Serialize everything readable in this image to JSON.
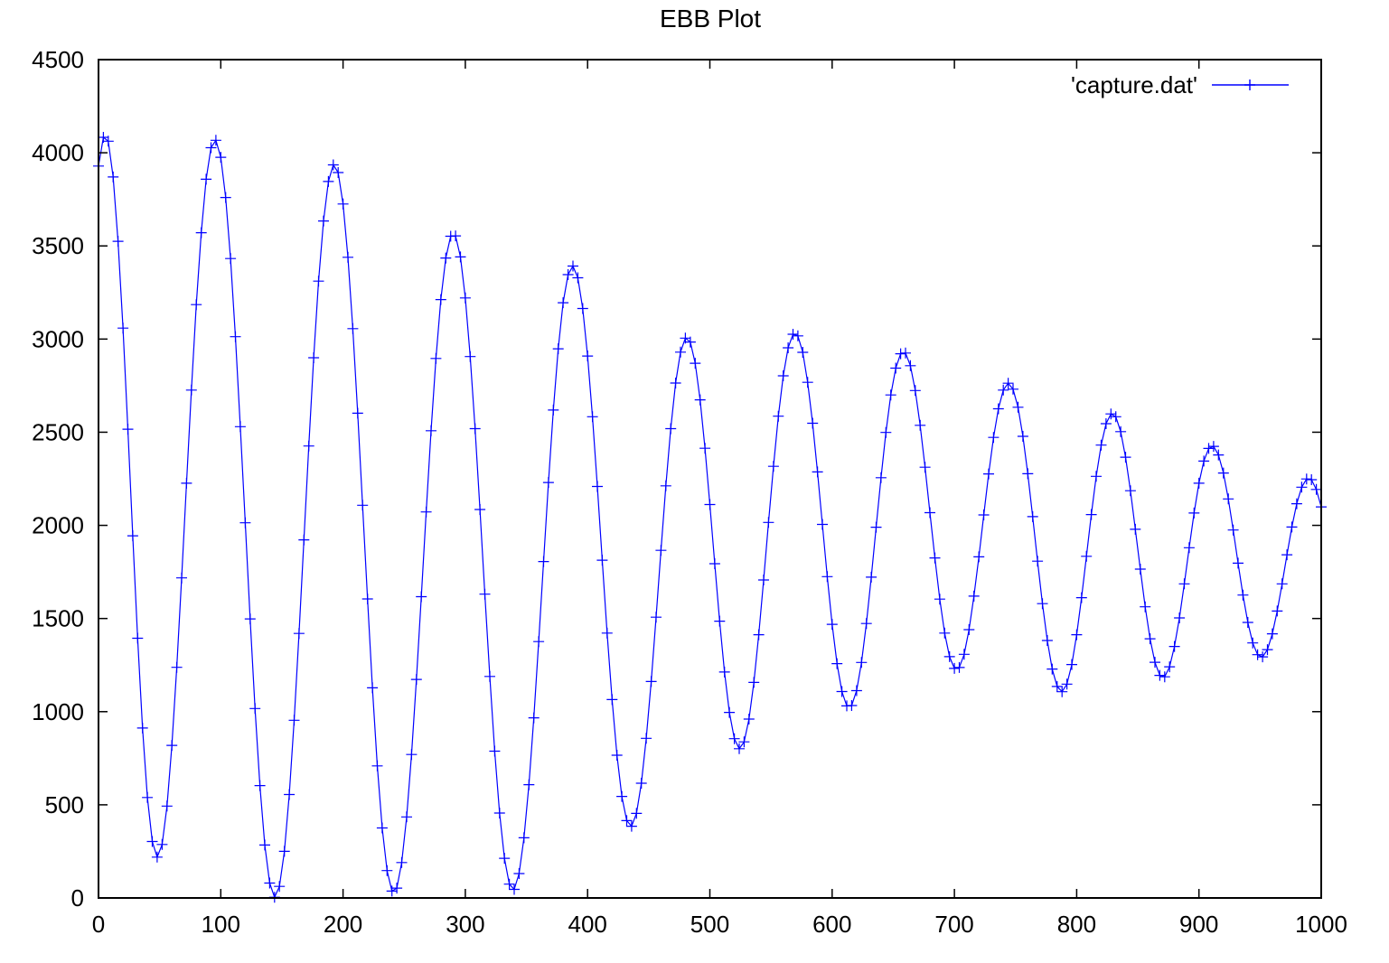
{
  "chart_data": {
    "type": "line",
    "title": "EBB Plot",
    "xlabel": "",
    "ylabel": "",
    "xlim": [
      0,
      1000
    ],
    "ylim": [
      0,
      4500
    ],
    "xticks": [
      "0",
      "100",
      "200",
      "300",
      "400",
      "500",
      "600",
      "700",
      "800",
      "900",
      "1000"
    ],
    "yticks": [
      "0",
      "500",
      "1000",
      "1500",
      "2000",
      "2500",
      "3000",
      "3500",
      "4000",
      "4500"
    ],
    "grid": false,
    "legend_position": "top-right",
    "marker": "plus",
    "line_color": "#0000ff",
    "series": [
      {
        "name": "'capture.dat'",
        "x": [
          0,
          4,
          8,
          12,
          16,
          20,
          24,
          28,
          32,
          36,
          40,
          44,
          48,
          52,
          56,
          60,
          64,
          68,
          72,
          76,
          80,
          84,
          88,
          92,
          96,
          100,
          104,
          108,
          112,
          116,
          120,
          124,
          128,
          132,
          136,
          140,
          144,
          148,
          152,
          156,
          160,
          164,
          168,
          172,
          176,
          180,
          184,
          188,
          192,
          196,
          200,
          204,
          208,
          212,
          216,
          220,
          224,
          228,
          232,
          236,
          240,
          244,
          248,
          252,
          256,
          260,
          264,
          268,
          272,
          276,
          280,
          284,
          288,
          292,
          296,
          300,
          304,
          308,
          312,
          316,
          320,
          324,
          328,
          332,
          336,
          340,
          344,
          348,
          352,
          356,
          360,
          364,
          368,
          372,
          376,
          380,
          384,
          388,
          392,
          396,
          400,
          404,
          408,
          412,
          416,
          420,
          424,
          428,
          432,
          436,
          440,
          444,
          448,
          452,
          456,
          460,
          464,
          468,
          472,
          476,
          480,
          484,
          488,
          492,
          496,
          500,
          504,
          508,
          512,
          516,
          520,
          524,
          528,
          532,
          536,
          540,
          544,
          548,
          552,
          556,
          560,
          564,
          568,
          572,
          576,
          580,
          584,
          588,
          592,
          596,
          600,
          604,
          608,
          612,
          616,
          620,
          624,
          628,
          632,
          636,
          640,
          644,
          648,
          652,
          656,
          660,
          664,
          668,
          672,
          676,
          680,
          684,
          688,
          692,
          696,
          700,
          704,
          708,
          712,
          716,
          720,
          724,
          728,
          732,
          736,
          740,
          744,
          748,
          752,
          756,
          760,
          764,
          768,
          772,
          776,
          780,
          784,
          788,
          792,
          796,
          800,
          804,
          808,
          812,
          816,
          820,
          824,
          828,
          832,
          836,
          840,
          844,
          848,
          852,
          856,
          860,
          864,
          868,
          872,
          876,
          880,
          884,
          888,
          892,
          896,
          900,
          904,
          908,
          912,
          916,
          920,
          924,
          928,
          932,
          936,
          940,
          944,
          948,
          952,
          956,
          960,
          964,
          968,
          972,
          976,
          980,
          984,
          988,
          992,
          996,
          1000
        ],
        "y": [
          3929,
          4083,
          4062,
          3870,
          3525,
          3059,
          2516,
          1944,
          1394,
          912,
          539,
          303,
          219,
          287,
          493,
          819,
          1238,
          1718,
          2226,
          2726,
          3185,
          3571,
          3858,
          4027,
          4067,
          3976,
          3760,
          3432,
          3013,
          2530,
          2014,
          1498,
          1017,
          603,
          284,
          80,
          4,
          62,
          250,
          555,
          954,
          1420,
          1922,
          2426,
          2900,
          3311,
          3634,
          3846,
          3935,
          3894,
          3725,
          3439,
          3056,
          2602,
          2108,
          1605,
          1128,
          709,
          376,
          147,
          37,
          53,
          190,
          435,
          770,
          1173,
          1617,
          2072,
          2508,
          2896,
          3212,
          3435,
          3552,
          3554,
          3441,
          3221,
          2906,
          2519,
          2085,
          1631,
          1189,
          788,
          456,
          213,
          74,
          46,
          131,
          323,
          608,
          967,
          1376,
          1806,
          2230,
          2619,
          2948,
          3195,
          3346,
          3392,
          3329,
          3164,
          2909,
          2583,
          2209,
          1813,
          1422,
          1065,
          766,
          545,
          415,
          385,
          454,
          616,
          857,
          1162,
          1507,
          1866,
          2212,
          2519,
          2764,
          2930,
          3005,
          2984,
          2870,
          2674,
          2414,
          2112,
          1794,
          1486,
          1213,
          996,
          855,
          801,
          838,
          960,
          1157,
          1413,
          1707,
          2016,
          2317,
          2586,
          2803,
          2953,
          3026,
          3017,
          2929,
          2768,
          2548,
          2287,
          2005,
          1725,
          1469,
          1258,
          1108,
          1031,
          1033,
          1113,
          1264,
          1473,
          1722,
          1990,
          2256,
          2499,
          2700,
          2844,
          2921,
          2925,
          2857,
          2724,
          2537,
          2312,
          2068,
          1825,
          1604,
          1422,
          1295,
          1232,
          1237,
          1308,
          1440,
          1620,
          1831,
          2056,
          2276,
          2472,
          2626,
          2726,
          2763,
          2731,
          2634,
          2478,
          2277,
          2047,
          1808,
          1580,
          1382,
          1229,
          1135,
          1107,
          1148,
          1253,
          1413,
          1612,
          1834,
          2058,
          2263,
          2431,
          2546,
          2598,
          2583,
          2503,
          2366,
          2186,
          1979,
          1765,
          1563,
          1391,
          1265,
          1195,
          1187,
          1241,
          1350,
          1503,
          1686,
          1880,
          2066,
          2226,
          2345,
          2413,
          2424,
          2378,
          2281,
          2142,
          1975,
          1797,
          1626,
          1479,
          1369,
          1306,
          1294,
          1333,
          1418,
          1540,
          1686,
          1842,
          1991,
          2116,
          2205,
          2249,
          2245,
          2193,
          2099
        ]
      }
    ]
  }
}
